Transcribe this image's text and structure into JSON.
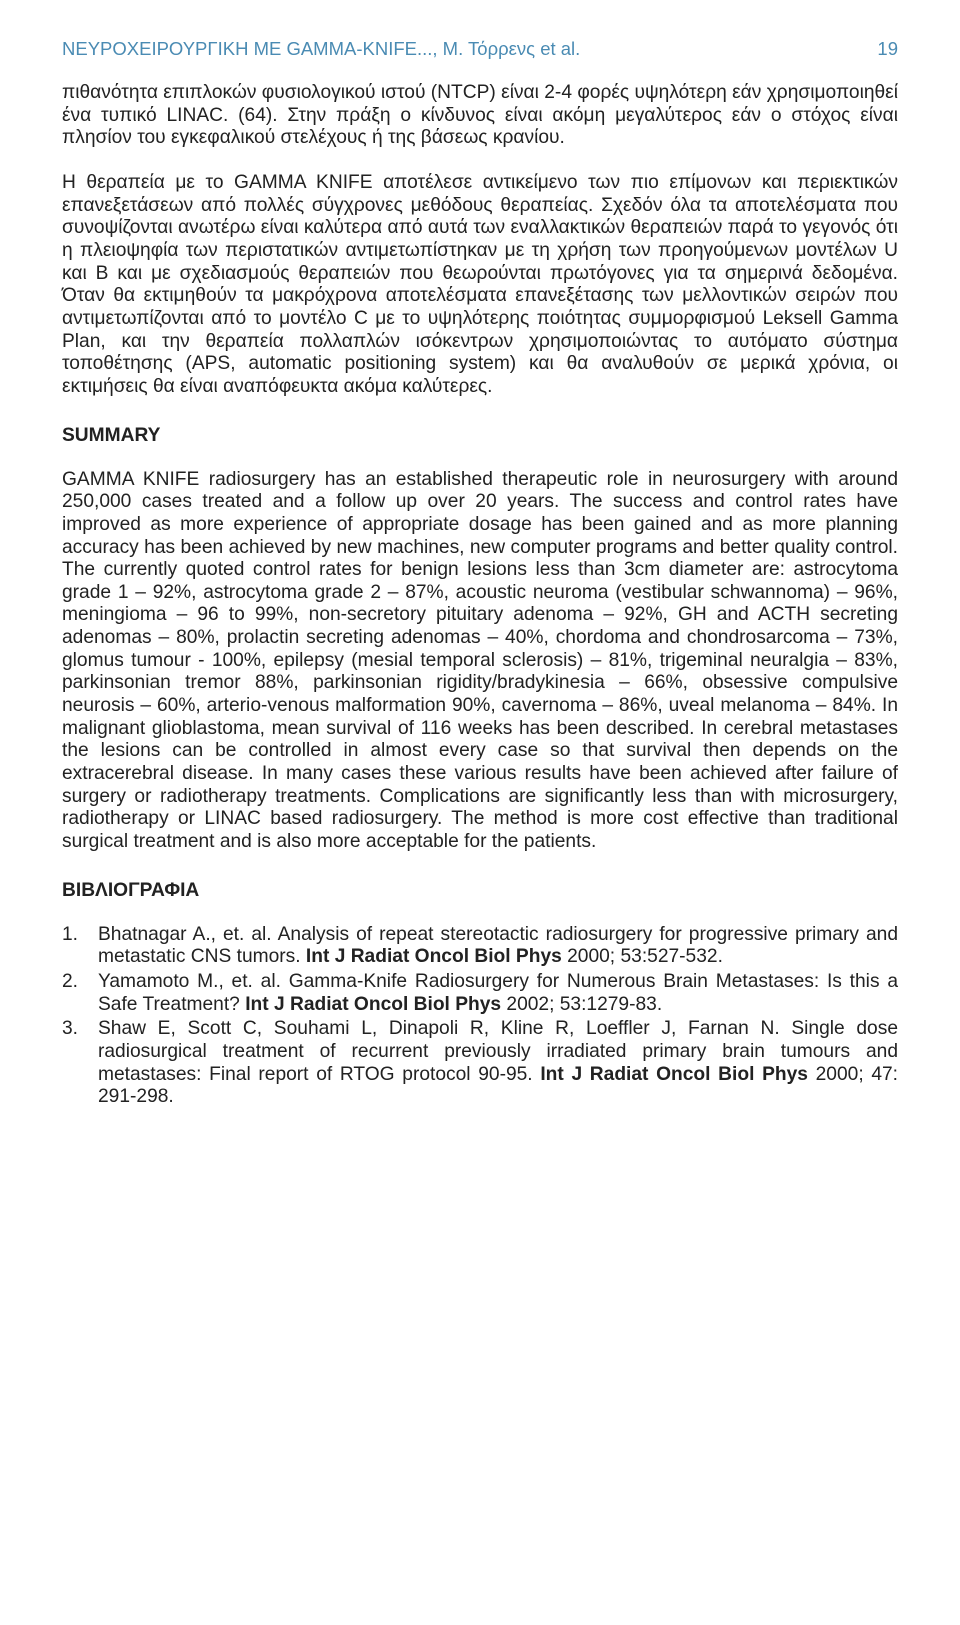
{
  "header": {
    "running_title": "ΝΕΥΡΟΧΕΙΡΟΥΡΓΙΚΗ ΜΕ GAMMA-KNIFE..., Μ. Τόρρενς et al.",
    "page_number": "19"
  },
  "paragraphs": {
    "p1a": "πιθανότητα επιπλοκών φυσιολογικού ιστού (NTCP) είναι 2-4 φορές υψηλότερη εάν χρησιμοποιηθεί ένα τυπικό LINAC. (64). Στην πράξη ο κίνδυνος είναι ακόμη μεγαλύτερος εάν ο στόχος είναι πλησίον του εγκεφαλικού στελέχους ή της βάσεως κρανίου.",
    "p1b": "Η θεραπεία με το GAMMA KNIFE αποτέλεσε αντικείμενο των πιο επίμονων και περιεκτικών επανεξετάσεων από πολλές σύγχρονες μεθόδους θεραπείας.  Σχεδόν όλα τα αποτελέσματα που συνοψίζονται ανωτέρω είναι καλύτερα από αυτά των εναλλακτικών θεραπειών παρά το γεγονός ότι η πλειοψηφία των περιστατικών αντιμετωπίστηκαν με τη χρήση των προηγούμενων μοντέλων U και B και με σχεδιασμούς θεραπειών που θεωρούνται πρωτόγονες για τα σημερινά δεδομένα.  Όταν θα εκτιμηθούν τα μακρόχρονα αποτελέσματα επανεξέτασης των μελλοντικών σειρών που αντιμετωπίζονται από το μοντέλο C με το υψηλότερης ποιότητας συμμορφισμού Leksell Gamma Plan, και την θεραπεία πολλαπλών ισόκεντρων χρησιμοποιώντας το αυτόματο σύστημα τοποθέτησης (APS, automatic positioning system)  και θα αναλυθούν σε μερικά χρόνια, οι εκτιμήσεις θα είναι αναπόφευκτα ακόμα καλύτερες.",
    "summary_title": "SUMMARY",
    "summary": "GAMMA KNIFE radiosurgery has an established therapeutic role in neurosurgery with around 250,000 cases treated and a follow up over 20 years.  The success and control rates have improved as more experience of appropriate dosage has been gained and as more planning accuracy has been achieved by new machines, new computer programs and better quality control.  The currently quoted control rates for benign lesions less than 3cm diameter are: astrocytoma grade 1 – 92%, astrocytoma grade 2 – 87%, acoustic neuroma (vestibular schwannoma) – 96%, meningioma – 96 to 99%, non-secretory pituitary adenoma – 92%, GH and ACTH secreting adenomas – 80%, prolactin secreting adenomas – 40%, chordoma and chondrosarcoma – 73%, glomus tumour - 100%, epilepsy (mesial temporal sclerosis) – 81%, trigeminal neuralgia – 83%, parkinsonian tremor 88%, parkinsonian rigidity/bradykinesia – 66%, obsessive compulsive neurosis – 60%, arterio-venous malformation 90%, cavernoma – 86%, uveal melanoma – 84%.  In malignant glioblastoma, mean survival of 116 weeks has been described.  In cerebral metastases the lesions can be controlled in almost every case so that survival then depends on the extracerebral disease.  In many cases these various results have been achieved after failure of surgery or radiotherapy treatments.  Complications are significantly less than with microsurgery, radiotherapy or LINAC based radiosurgery.  The method is more cost effective than traditional surgical treatment and is also more acceptable for the patients.",
    "biblio_title": "ΒΙΒΛΙΟΓΡΑΦΙΑ"
  },
  "references": [
    {
      "num": "1.",
      "pre": "Bhatnagar A., et. al. Analysis of repeat stereotactic radiosurgery for progressive primary and metastatic CNS tumors. ",
      "bold": "Int J Radiat Oncol Biol Phys",
      "post": " 2000; 53:527-532."
    },
    {
      "num": "2.",
      "pre": "Yamamoto M., et. al. Gamma-Knife Radiosurgery for Numerous Brain Metastases: Is this a Safe Treatment? ",
      "bold": "Int J Radiat Oncol Biol Phys",
      "post": " 2002; 53:1279-83."
    },
    {
      "num": "3.",
      "pre": "Shaw E, Scott C, Souhami L, Dinapoli R, Kline R, Loeffler J, Farnan N.  Single dose radiosurgical treatment of recurrent previously irradiated primary brain tumours and metastases: Final report of RTOG protocol 90-95.  ",
      "bold": "Int J Radiat Oncol Biol Phys",
      "post": " 2000; 47: 291-298."
    }
  ]
}
